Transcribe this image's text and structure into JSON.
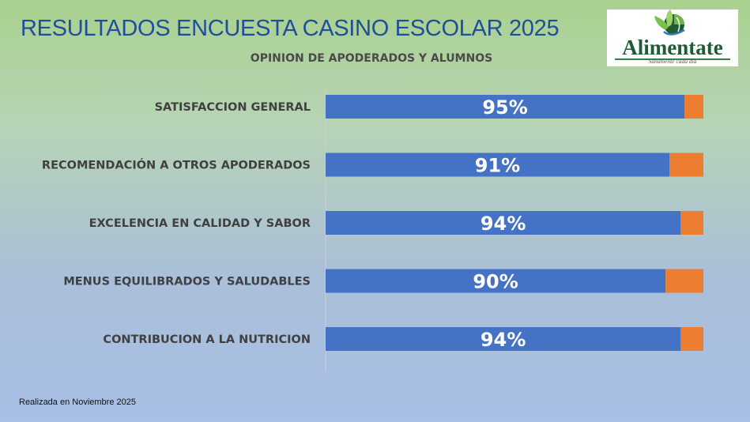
{
  "header": {
    "title": "RESULTADOS ENCUESTA CASINO ESCOLAR 2025",
    "logo_name": "Alimentate",
    "logo_tagline": "Sanamente cada día"
  },
  "footer": {
    "note": "Realizada en Noviembre 2025"
  },
  "colors": {
    "positive": "#4472c4",
    "negative": "#ed7d31",
    "title": "#1f4e9a"
  },
  "chart_data": {
    "type": "bar",
    "orientation": "horizontal",
    "stacked": true,
    "title": "OPINION DE APODERADOS Y ALUMNOS",
    "categories": [
      "SATISFACCION GENERAL",
      "RECOMENDACIÓN A OTROS APODERADOS",
      "EXCELENCIA EN CALIDAD Y SABOR",
      "MENUS EQUILIBRADOS Y SALUDABLES",
      "CONTRIBUCION A LA NUTRICION"
    ],
    "series": [
      {
        "values": [
          95,
          91,
          94,
          90,
          94
        ],
        "data_labels": [
          "95%",
          "91%",
          "94%",
          "90%",
          "94%"
        ]
      },
      {
        "values": [
          5,
          9,
          6,
          10,
          6
        ]
      }
    ],
    "xlim": [
      0,
      100
    ],
    "grid": false,
    "legend": "none"
  }
}
